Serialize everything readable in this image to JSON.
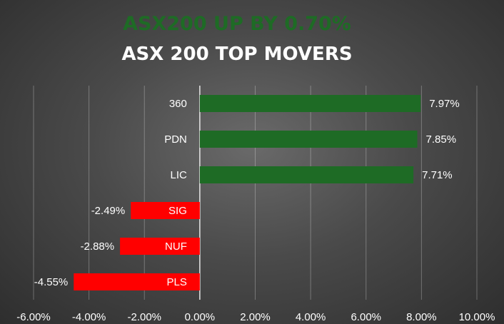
{
  "headline": "ASX200 UP BY 0.70%",
  "chart_data": {
    "type": "bar",
    "orientation": "horizontal",
    "title": "ASX 200 TOP MOVERS",
    "categories": [
      "360",
      "PDN",
      "LIC",
      "SIG",
      "NUF",
      "PLS"
    ],
    "values": [
      7.97,
      7.85,
      7.71,
      -2.49,
      -2.88,
      -4.55
    ],
    "value_labels": [
      "7.97%",
      "7.85%",
      "7.71%",
      "-2.49%",
      "-2.88%",
      "-4.55%"
    ],
    "xlim": [
      -6,
      10
    ],
    "xticks": [
      -6,
      -4,
      -2,
      0,
      2,
      4,
      6,
      8,
      10
    ],
    "xtick_labels": [
      "-6.00%",
      "-4.00%",
      "-2.00%",
      "0.00%",
      "2.00%",
      "4.00%",
      "6.00%",
      "8.00%",
      "10.00%"
    ],
    "xlabel": "",
    "ylabel": "",
    "grid": true,
    "colors": {
      "positive": "#1e6b25",
      "negative": "#ff0000",
      "headline": "#1e6b25",
      "title": "#ffffff",
      "text": "#ffffff"
    }
  }
}
